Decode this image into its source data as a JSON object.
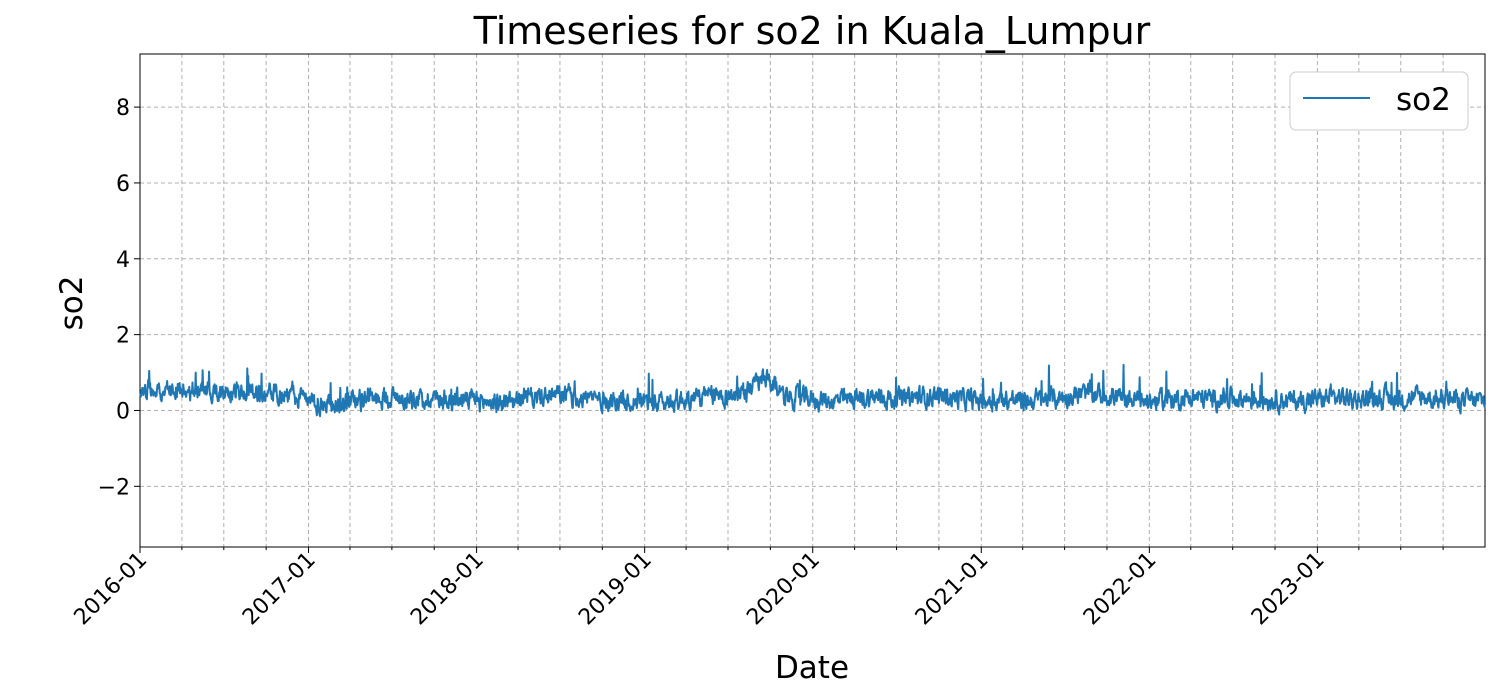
{
  "chart_data": {
    "type": "line",
    "title": "Timeseries for so2 in Kuala_Lumpur",
    "xlabel": "Date",
    "ylabel": "so2",
    "x_range": [
      "2016-01-01",
      "2023-12-31"
    ],
    "ylim": [
      -3.6,
      9.4
    ],
    "y_ticks": [
      -2,
      0,
      2,
      4,
      6,
      8
    ],
    "x_tick_labels": [
      "2016-01",
      "2017-01",
      "2018-01",
      "2019-01",
      "2020-01",
      "2021-01",
      "2022-01",
      "2023-01"
    ],
    "grid": true,
    "legend_placement": "upper right",
    "series_color": "#1f77b4",
    "series": [
      {
        "name": "so2",
        "x": [
          "2016-01-01",
          "2016-02-15",
          "2016-04-01",
          "2016-05-15",
          "2016-07-01",
          "2016-08-15",
          "2016-10-01",
          "2016-11-15",
          "2017-01-01",
          "2017-02-15",
          "2017-04-01",
          "2017-05-15",
          "2017-07-01",
          "2017-08-15",
          "2017-10-01",
          "2017-11-15",
          "2018-01-01",
          "2018-02-15",
          "2018-04-01",
          "2018-05-15",
          "2018-07-01",
          "2018-08-15",
          "2018-10-01",
          "2018-11-15",
          "2019-01-01",
          "2019-02-15",
          "2019-04-01",
          "2019-05-15",
          "2019-07-01",
          "2019-08-15",
          "2019-09-15",
          "2019-11-15",
          "2020-01-01",
          "2020-02-15",
          "2020-04-01",
          "2020-05-15",
          "2020-07-01",
          "2020-08-15",
          "2020-10-01",
          "2020-11-15",
          "2021-01-01",
          "2021-02-15",
          "2021-04-01",
          "2021-05-15",
          "2021-07-01",
          "2021-08-15",
          "2021-10-01",
          "2021-11-15",
          "2022-01-01",
          "2022-02-15",
          "2022-04-01",
          "2022-05-15",
          "2022-07-01",
          "2022-08-15",
          "2022-10-01",
          "2022-11-15",
          "2023-01-01",
          "2023-02-15",
          "2023-04-01",
          "2023-05-15",
          "2023-07-01",
          "2023-08-15",
          "2023-10-01",
          "2023-12-31"
        ],
        "values": [
          0.45,
          0.55,
          0.5,
          0.6,
          0.45,
          0.5,
          0.45,
          0.4,
          0.2,
          0.15,
          0.25,
          0.3,
          0.35,
          0.3,
          0.35,
          0.3,
          0.25,
          0.2,
          0.3,
          0.35,
          0.4,
          0.35,
          0.3,
          0.25,
          0.25,
          0.2,
          0.3,
          0.35,
          0.4,
          0.55,
          0.8,
          0.35,
          0.3,
          0.25,
          0.3,
          0.35,
          0.3,
          0.35,
          0.4,
          0.3,
          0.25,
          0.3,
          0.25,
          0.3,
          0.35,
          0.45,
          0.4,
          0.3,
          0.25,
          0.3,
          0.35,
          0.3,
          0.35,
          0.3,
          0.3,
          0.25,
          0.3,
          0.35,
          0.3,
          0.35,
          0.3,
          0.35,
          0.3,
          0.25
        ]
      }
    ]
  }
}
